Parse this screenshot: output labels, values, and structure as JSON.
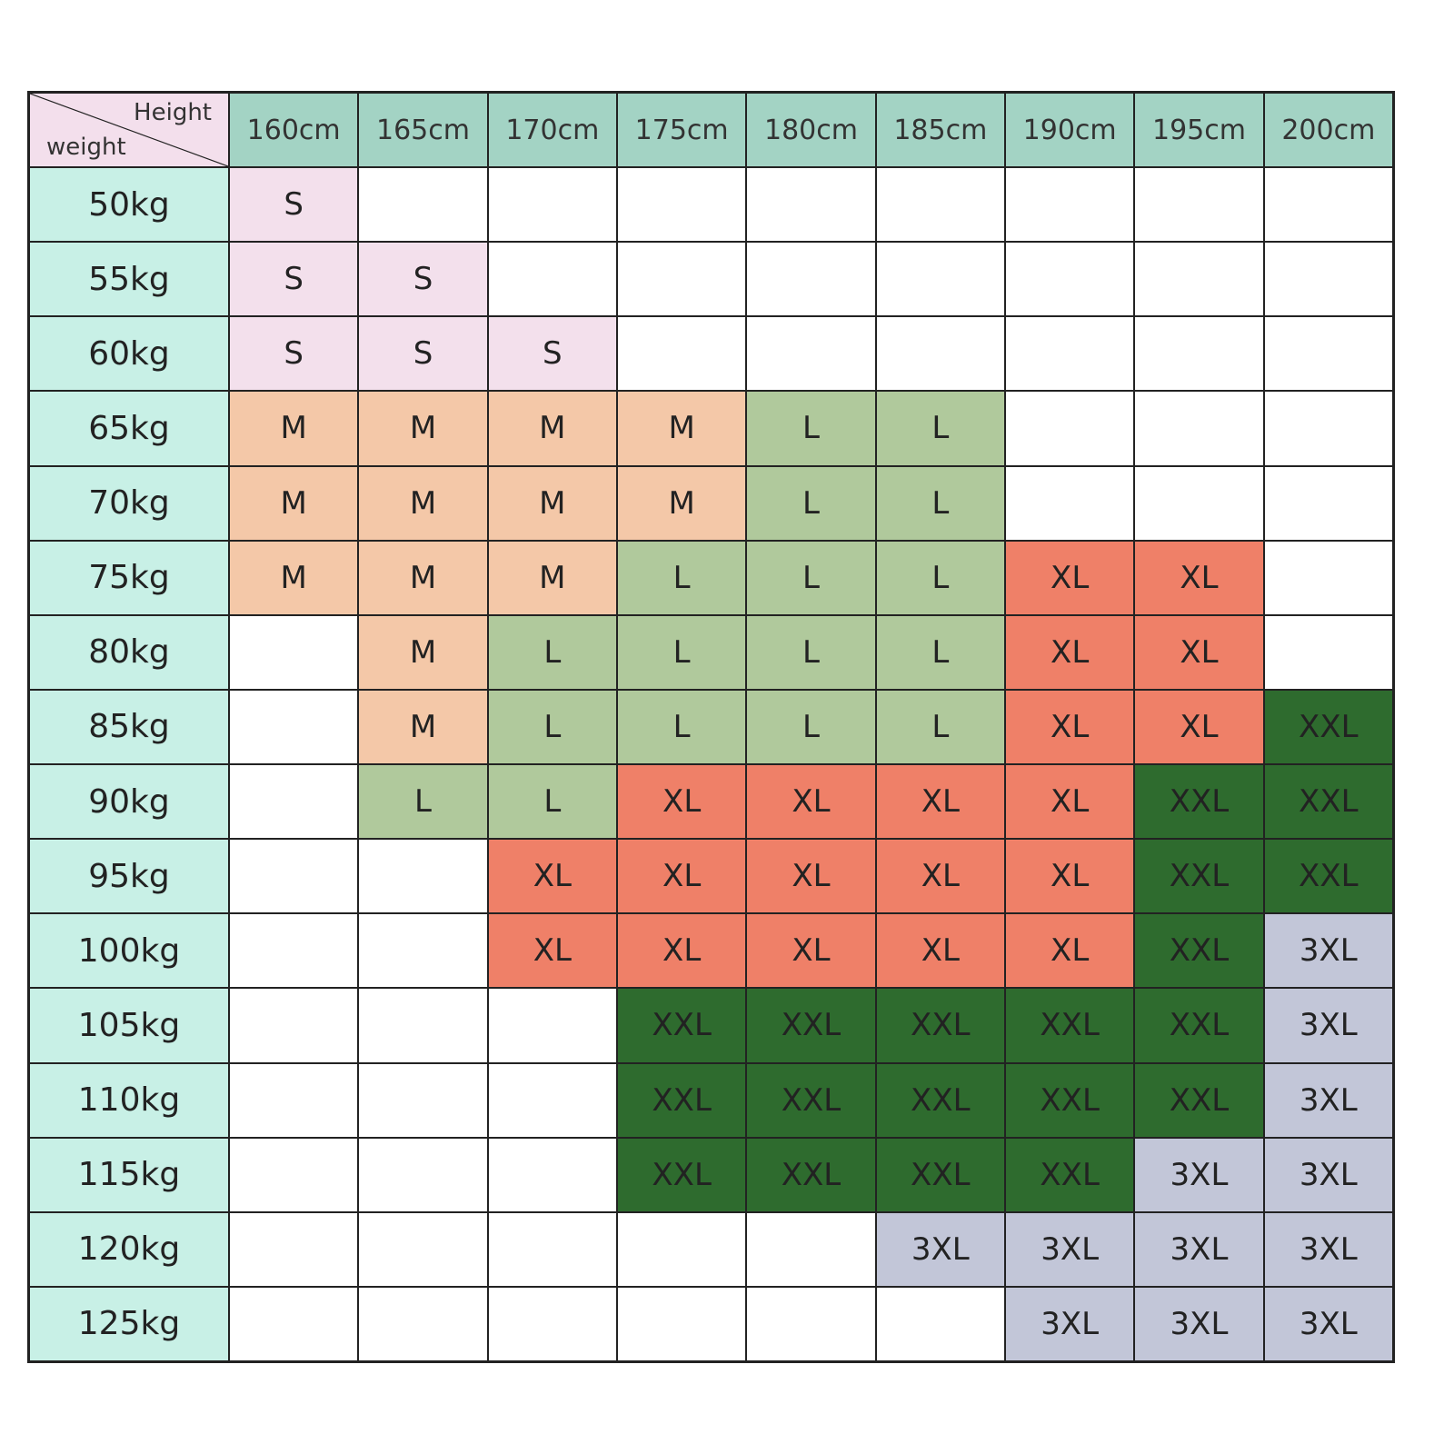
{
  "table": {
    "corner": {
      "column_label": "Height",
      "row_label": "weight"
    },
    "columns": [
      "160cm",
      "165cm",
      "170cm",
      "175cm",
      "180cm",
      "185cm",
      "190cm",
      "195cm",
      "200cm"
    ],
    "size_colors": {
      "S": "#f3e0ec",
      "M": "#f4c8a8",
      "L": "#b0c99c",
      "XL": "#ef8068",
      "XXL": "#2e6b2e",
      "3XL": "#c2c6d8"
    },
    "rows": [
      {
        "label": "50kg",
        "cells": [
          "S",
          null,
          null,
          null,
          null,
          null,
          null,
          null,
          null
        ]
      },
      {
        "label": "55kg",
        "cells": [
          "S",
          "S",
          null,
          null,
          null,
          null,
          null,
          null,
          null
        ]
      },
      {
        "label": "60kg",
        "cells": [
          "S",
          "S",
          "S",
          null,
          null,
          null,
          null,
          null,
          null
        ]
      },
      {
        "label": "65kg",
        "cells": [
          "M",
          "M",
          "M",
          "M",
          "L",
          "L",
          null,
          null,
          null
        ]
      },
      {
        "label": "70kg",
        "cells": [
          "M",
          "M",
          "M",
          "M",
          "L",
          "L",
          null,
          null,
          null
        ]
      },
      {
        "label": "75kg",
        "cells": [
          "M",
          "M",
          "M",
          "L",
          "L",
          "L",
          "XL",
          "XL",
          null
        ]
      },
      {
        "label": "80kg",
        "cells": [
          null,
          "M",
          "L",
          "L",
          "L",
          "L",
          "XL",
          "XL",
          null
        ]
      },
      {
        "label": "85kg",
        "cells": [
          null,
          "M",
          "L",
          "L",
          "L",
          "L",
          "XL",
          "XL",
          "XXL"
        ]
      },
      {
        "label": "90kg",
        "cells": [
          null,
          "L",
          "L",
          "XL",
          "XL",
          "XL",
          "XL",
          "XXL",
          "XXL"
        ]
      },
      {
        "label": "95kg",
        "cells": [
          null,
          null,
          "XL",
          "XL",
          "XL",
          "XL",
          "XL",
          "XXL",
          "XXL"
        ]
      },
      {
        "label": "100kg",
        "cells": [
          null,
          null,
          "XL",
          "XL",
          "XL",
          "XL",
          "XL",
          "XXL",
          "3XL"
        ]
      },
      {
        "label": "105kg",
        "cells": [
          null,
          null,
          null,
          "XXL",
          "XXL",
          "XXL",
          "XXL",
          "XXL",
          "3XL"
        ]
      },
      {
        "label": "110kg",
        "cells": [
          null,
          null,
          null,
          "XXL",
          "XXL",
          "XXL",
          "XXL",
          "XXL",
          "3XL"
        ]
      },
      {
        "label": "115kg",
        "cells": [
          null,
          null,
          null,
          "XXL",
          "XXL",
          "XXL",
          "XXL",
          "3XL",
          "3XL"
        ]
      },
      {
        "label": "120kg",
        "cells": [
          null,
          null,
          null,
          null,
          null,
          "3XL",
          "3XL",
          "3XL",
          "3XL"
        ]
      },
      {
        "label": "125kg",
        "cells": [
          null,
          null,
          null,
          null,
          null,
          null,
          "3XL",
          "3XL",
          "3XL"
        ]
      }
    ]
  }
}
